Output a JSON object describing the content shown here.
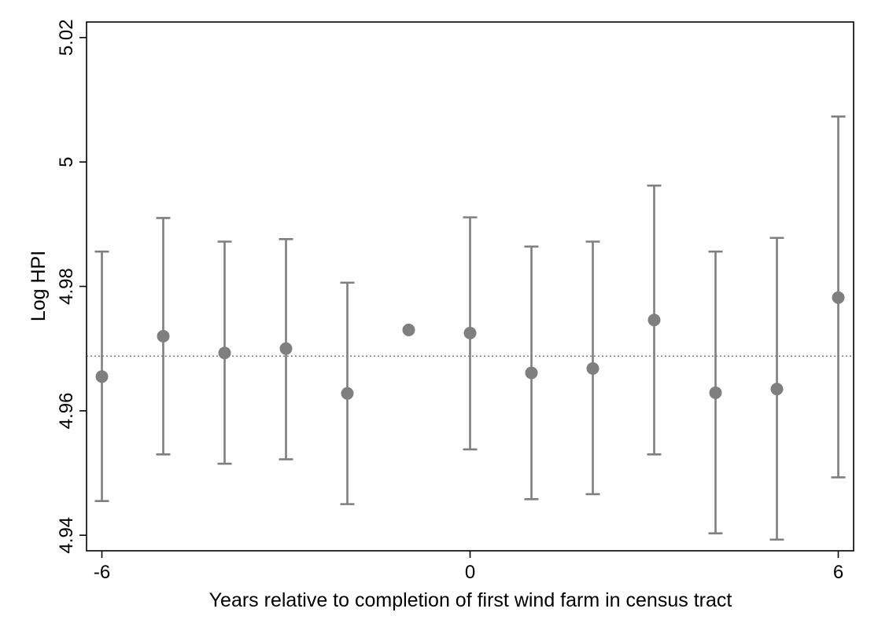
{
  "chart_data": {
    "type": "scatter",
    "title": "",
    "xlabel": "Years relative to completion of first wind farm in census tract",
    "ylabel": "Log HPI",
    "xlim": [
      -6.25,
      6.25
    ],
    "ylim": [
      4.9375,
      5.0225
    ],
    "x_ticks": [
      -6,
      0,
      6
    ],
    "x_tick_labels": [
      "-6",
      "0",
      "6"
    ],
    "y_ticks": [
      4.94,
      4.96,
      4.98,
      5,
      5.02
    ],
    "y_tick_labels": [
      "4.94",
      "4.96",
      "4.98",
      "5",
      "5.02"
    ],
    "reference_line_y": 4.9688,
    "grid": false,
    "legend": "none",
    "marker_color": "#7f7f7f",
    "series": [
      {
        "points": [
          {
            "x": -6,
            "y": 4.9655,
            "lo": 4.9455,
            "hi": 4.9856
          },
          {
            "x": -5,
            "y": 4.972,
            "lo": 4.953,
            "hi": 4.991
          },
          {
            "x": -4,
            "y": 4.9693,
            "lo": 4.9515,
            "hi": 4.9872
          },
          {
            "x": -3,
            "y": 4.97,
            "lo": 4.9522,
            "hi": 4.9876
          },
          {
            "x": -2,
            "y": 4.9628,
            "lo": 4.945,
            "hi": 4.9806
          },
          {
            "x": -1,
            "y": 4.973
          },
          {
            "x": 0,
            "y": 4.9725,
            "lo": 4.9538,
            "hi": 4.9911
          },
          {
            "x": 1,
            "y": 4.9661,
            "lo": 4.9458,
            "hi": 4.9864
          },
          {
            "x": 2,
            "y": 4.9668,
            "lo": 4.9466,
            "hi": 4.9872
          },
          {
            "x": 3,
            "y": 4.9746,
            "lo": 4.953,
            "hi": 4.9962
          },
          {
            "x": 4,
            "y": 4.9629,
            "lo": 4.9403,
            "hi": 4.9856
          },
          {
            "x": 5,
            "y": 4.9635,
            "lo": 4.9393,
            "hi": 4.9878
          },
          {
            "x": 6,
            "y": 4.9782,
            "lo": 4.9493,
            "hi": 5.0073
          }
        ]
      }
    ]
  }
}
